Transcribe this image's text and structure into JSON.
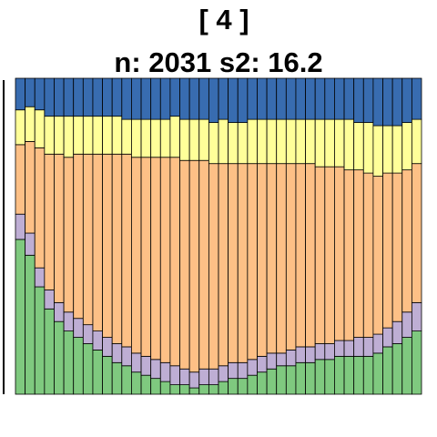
{
  "chart_data": {
    "type": "bar",
    "stacked": "proportional",
    "title": "[ 4 ]",
    "subtitle": "n: 2031 s2: 16.2",
    "ylim": [
      0,
      1
    ],
    "stack_order_bottom_to_top": [
      "green",
      "purple",
      "orange",
      "yellow",
      "blue"
    ],
    "colors": {
      "green": "#7FC97F",
      "purple": "#BEAED4",
      "orange": "#FDC086",
      "yellow": "#FFFF99",
      "blue": "#386CB0"
    },
    "series": [
      {
        "color": "green",
        "values": [
          0.49,
          0.44,
          0.34,
          0.27,
          0.23,
          0.2,
          0.18,
          0.16,
          0.14,
          0.12,
          0.1,
          0.09,
          0.07,
          0.06,
          0.05,
          0.04,
          0.03,
          0.03,
          0.02,
          0.03,
          0.03,
          0.04,
          0.05,
          0.05,
          0.06,
          0.07,
          0.08,
          0.09,
          0.09,
          0.1,
          0.1,
          0.11,
          0.11,
          0.12,
          0.12,
          0.12,
          0.12,
          0.13,
          0.15,
          0.16,
          0.18,
          0.2
        ]
      },
      {
        "color": "purple",
        "values": [
          0.08,
          0.07,
          0.06,
          0.06,
          0.06,
          0.06,
          0.06,
          0.06,
          0.06,
          0.06,
          0.06,
          0.06,
          0.06,
          0.06,
          0.06,
          0.06,
          0.06,
          0.05,
          0.05,
          0.05,
          0.05,
          0.05,
          0.05,
          0.05,
          0.05,
          0.05,
          0.05,
          0.04,
          0.05,
          0.05,
          0.05,
          0.05,
          0.05,
          0.05,
          0.05,
          0.06,
          0.06,
          0.06,
          0.06,
          0.07,
          0.08,
          0.09
        ]
      },
      {
        "color": "orange",
        "values": [
          0.22,
          0.29,
          0.38,
          0.43,
          0.47,
          0.49,
          0.52,
          0.54,
          0.56,
          0.58,
          0.6,
          0.61,
          0.62,
          0.63,
          0.64,
          0.65,
          0.66,
          0.66,
          0.67,
          0.66,
          0.65,
          0.64,
          0.63,
          0.63,
          0.62,
          0.61,
          0.6,
          0.6,
          0.59,
          0.58,
          0.58,
          0.56,
          0.56,
          0.55,
          0.54,
          0.53,
          0.52,
          0.5,
          0.49,
          0.47,
          0.45,
          0.44
        ]
      },
      {
        "color": "yellow",
        "values": [
          0.11,
          0.11,
          0.12,
          0.12,
          0.12,
          0.13,
          0.12,
          0.12,
          0.12,
          0.12,
          0.12,
          0.11,
          0.12,
          0.12,
          0.12,
          0.12,
          0.13,
          0.13,
          0.13,
          0.13,
          0.13,
          0.14,
          0.13,
          0.13,
          0.14,
          0.14,
          0.14,
          0.14,
          0.14,
          0.14,
          0.14,
          0.15,
          0.15,
          0.15,
          0.16,
          0.15,
          0.16,
          0.16,
          0.15,
          0.15,
          0.15,
          0.14
        ]
      },
      {
        "color": "blue",
        "values": [
          0.1,
          0.09,
          0.1,
          0.12,
          0.12,
          0.12,
          0.12,
          0.12,
          0.12,
          0.12,
          0.12,
          0.13,
          0.13,
          0.13,
          0.13,
          0.13,
          0.12,
          0.13,
          0.13,
          0.13,
          0.14,
          0.13,
          0.14,
          0.14,
          0.13,
          0.13,
          0.13,
          0.13,
          0.13,
          0.13,
          0.13,
          0.13,
          0.13,
          0.13,
          0.13,
          0.14,
          0.14,
          0.15,
          0.15,
          0.15,
          0.14,
          0.13
        ]
      }
    ]
  }
}
